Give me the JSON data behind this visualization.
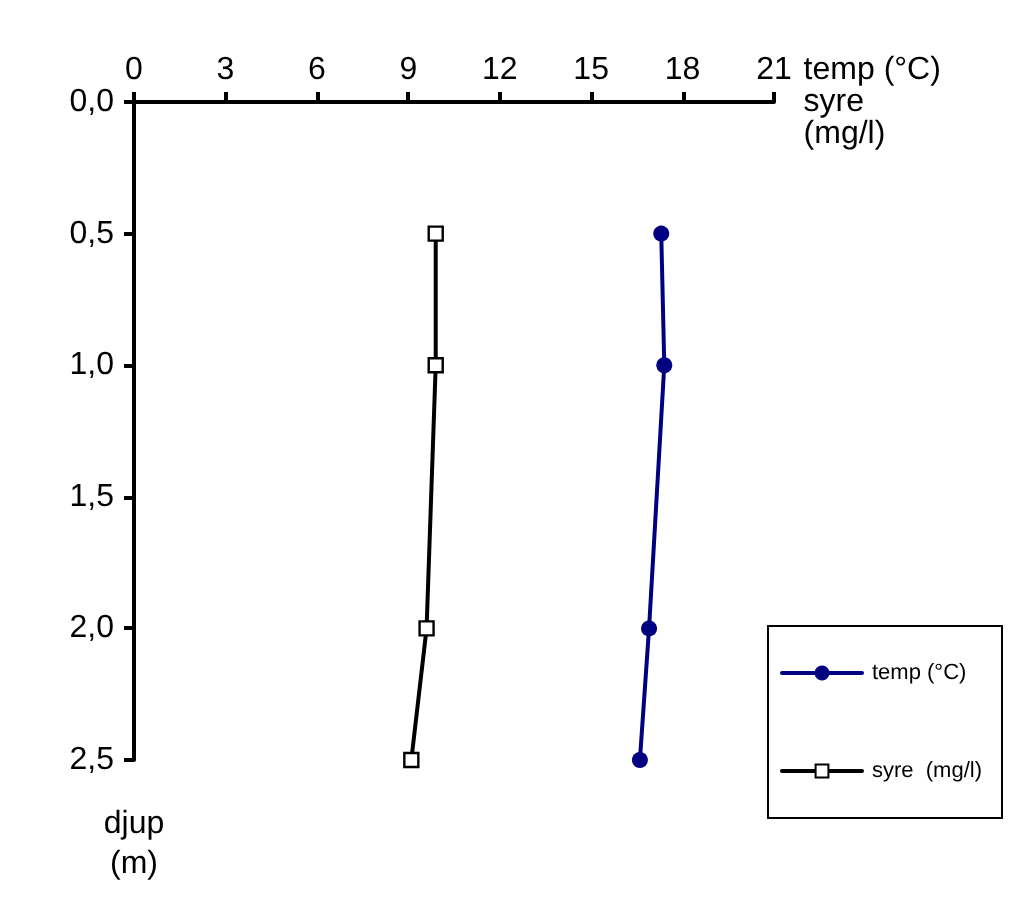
{
  "chart_data": {
    "type": "line",
    "xlabel": "temp (°C)\nsyre\n(mg/l)",
    "ylabel": "djup\n(m)",
    "xlim": [
      0,
      21
    ],
    "xticks": [
      0,
      3,
      6,
      9,
      12,
      15,
      18,
      21
    ],
    "ylim": [
      2.5,
      0
    ],
    "yticks": [
      {
        "value": 0,
        "label": "0,0"
      },
      {
        "value": 0.5,
        "label": "0,5"
      },
      {
        "value": 1,
        "label": "1,0"
      },
      {
        "value": 1.5,
        "label": "1,5"
      },
      {
        "value": 2,
        "label": "2,0"
      },
      {
        "value": 2.5,
        "label": "2,5"
      }
    ],
    "grid": false,
    "legend": "bottom right",
    "line_style": "solid",
    "series": [
      {
        "name": "temp (°C)",
        "color": "#000080",
        "marker": "circle",
        "x": [
          17.3,
          17.4,
          16.9,
          16.6
        ],
        "values": [
          0.5,
          1,
          2,
          2.5
        ]
      },
      {
        "name": "syre  (mg/l)",
        "color": "#000000",
        "marker": "square",
        "x": [
          9.9,
          9.9,
          9.6,
          9.1
        ],
        "values": [
          0.5,
          1,
          2,
          2.5
        ]
      }
    ]
  }
}
